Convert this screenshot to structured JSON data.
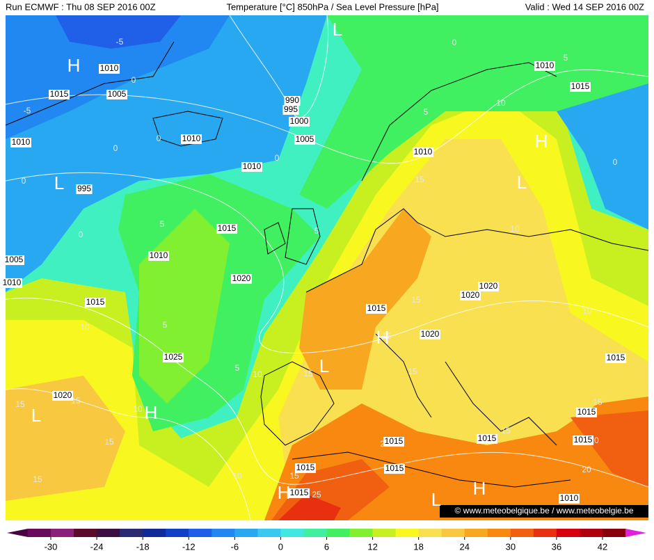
{
  "header": {
    "run": "Run ECMWF : Thu 08 SEP 2016 00Z",
    "field": "Temperature [°C] 850hPa / Sea Level Pressure [hPa]",
    "valid": "Valid : Wed 14 SEP 2016 00Z"
  },
  "map": {
    "isobar_labels": [
      "1010",
      "1015",
      "1005",
      "1010",
      "1010",
      "1010",
      "1000",
      "1005",
      "990",
      "995",
      "1015",
      "1010",
      "1020",
      "1015",
      "1025",
      "1020",
      "1010",
      "1015",
      "1020",
      "1020",
      "1020",
      "1010",
      "1015",
      "1015",
      "1015",
      "1015",
      "1015",
      "1015",
      "1015",
      "1015",
      "1010",
      "995",
      "1005",
      "1010",
      "1015"
    ],
    "temperature_labels": [
      "-5",
      "-5",
      "0",
      "0",
      "0",
      "0",
      "0",
      "0",
      "0",
      "0",
      "5",
      "5",
      "5",
      "5",
      "5",
      "5",
      "10",
      "10",
      "10",
      "10",
      "10",
      "10",
      "10",
      "15",
      "15",
      "15",
      "15",
      "15",
      "15",
      "15",
      "15",
      "15",
      "15",
      "15",
      "15",
      "20",
      "20",
      "20",
      "25"
    ],
    "pressure_centers": [
      "H",
      "L",
      "L",
      "H",
      "L",
      "H",
      "L",
      "L",
      "H",
      "H",
      "H",
      "L"
    ],
    "credit": "© www.meteobelgique.be / www.meteobelgie.be"
  },
  "colorbar": {
    "ticks": [
      -30,
      -24,
      -18,
      -12,
      -6,
      0,
      6,
      12,
      18,
      24,
      30,
      36,
      42
    ],
    "colors": [
      "#6a0a5a",
      "#8a207a",
      "#5a0a2a",
      "#3a1040",
      "#2a2a70",
      "#102a9a",
      "#1040c8",
      "#2060e8",
      "#2088f0",
      "#28a8f0",
      "#38c8f0",
      "#40e8e0",
      "#40f0a0",
      "#40f060",
      "#80f030",
      "#c8f020",
      "#f8f820",
      "#f8e050",
      "#f8c840",
      "#f8a820",
      "#f88810",
      "#f06010",
      "#e83010",
      "#d80010",
      "#b00010",
      "#880010"
    ],
    "under_color": "#4a0040",
    "over_color": "#e020e0"
  }
}
